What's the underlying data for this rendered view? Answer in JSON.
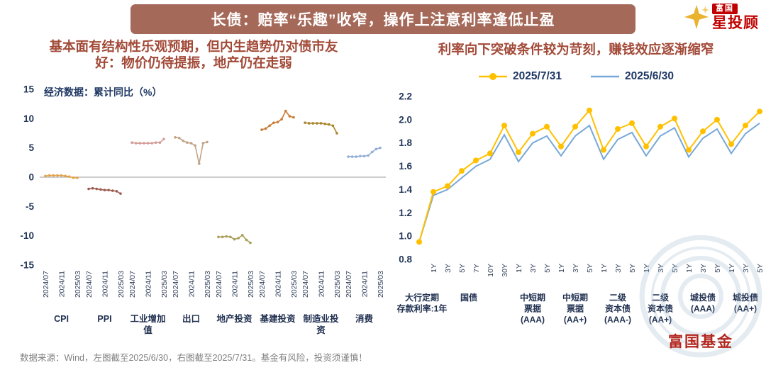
{
  "banner": {
    "title": "长债：赔率“乐趣”收窄，操作上注意利率逢低止盈"
  },
  "logo": {
    "brand": "富国",
    "product": "星投顾"
  },
  "footer": {
    "note": "数据来源：Wind，左图截至2025/6/30，右图截至2025/7/31。基金有风险，投资须谨慎！"
  },
  "watermark": {
    "text": "富国基金"
  },
  "colors": {
    "banner_bg": "#A5695A",
    "title_text": "#A24A38",
    "axis_text": "#24385B",
    "footer_text": "#808080",
    "brand_red": "#C00000",
    "current_series": "#FFC000",
    "previous_series": "#78A8D8"
  },
  "chart_data": [
    {
      "type": "line",
      "title_lines": [
        "基本面有结构性乐观预期，但内生趋势仍对债市友",
        "好：物价仍待提振，地产仍在走弱"
      ],
      "inner_label": "经济数据：累计同比（%）",
      "ylim": [
        -15,
        15
      ],
      "ytick_step": 5,
      "grid": false,
      "x_tick_labels": [
        "2024/07",
        "2024/11",
        "2025/03"
      ],
      "x_tick_indices": [
        0,
        4,
        8
      ],
      "groups": [
        {
          "label_lines": [
            "CPI"
          ],
          "color": "#E4A24C",
          "values": [
            0.2,
            0.3,
            0.3,
            0.3,
            0.3,
            0.2,
            0.1,
            -0.1,
            -0.1
          ]
        },
        {
          "label_lines": [
            "PPI"
          ],
          "color": "#9E5B50",
          "values": [
            -2.0,
            -1.9,
            -2.0,
            -2.1,
            -2.2,
            -2.2,
            -2.3,
            -2.4,
            -2.8
          ]
        },
        {
          "label_lines": [
            "工业增加",
            "值"
          ],
          "color": "#D49C96",
          "values": [
            5.9,
            5.8,
            5.8,
            5.8,
            5.8,
            5.8,
            5.9,
            5.9,
            6.5
          ]
        },
        {
          "label_lines": [
            "出口"
          ],
          "color": "#C2A385",
          "values": [
            6.8,
            6.7,
            6.2,
            5.9,
            5.8,
            5.4,
            2.3,
            5.8,
            6.0
          ]
        },
        {
          "label_lines": [
            "地产投资"
          ],
          "color": "#A8A05A",
          "values": [
            -10.2,
            -10.2,
            -10.1,
            -10.2,
            -10.6,
            -10.4,
            -9.9,
            -10.7,
            -11.2
          ]
        },
        {
          "label_lines": [
            "基建投资"
          ],
          "color": "#C97B34",
          "values": [
            8.1,
            8.3,
            8.8,
            9.3,
            9.4,
            9.9,
            11.3,
            10.4,
            10.2
          ]
        },
        {
          "label_lines": [
            "制造业投",
            "资"
          ],
          "color": "#A9862C",
          "values": [
            9.3,
            9.2,
            9.2,
            9.2,
            9.2,
            9.1,
            9.0,
            8.8,
            7.5
          ]
        },
        {
          "label_lines": [
            "消费"
          ],
          "color": "#92AFD7",
          "values": [
            3.5,
            3.5,
            3.5,
            3.6,
            3.6,
            3.7,
            4.3,
            4.8,
            5.0
          ]
        }
      ]
    },
    {
      "type": "line",
      "title": "利率向下突破条件较为苛刻，赚钱效应逐渐缩窄",
      "ylim": [
        0.8,
        2.2
      ],
      "ytick_step": 0.2,
      "grid": false,
      "legend_position": "top",
      "groups": [
        {
          "label_lines": [
            "大行定期",
            "存款利率:1年"
          ],
          "ticks": [
            ""
          ]
        },
        {
          "label_lines": [
            "国债"
          ],
          "ticks": [
            "1Y",
            "3Y",
            "5Y",
            "7Y",
            "10Y",
            "30Y"
          ]
        },
        {
          "label_lines": [
            "中短期",
            "票据",
            "(AAA)"
          ],
          "ticks": [
            "1Y",
            "3Y",
            "5Y"
          ]
        },
        {
          "label_lines": [
            "中短期",
            "票据",
            "(AA+)"
          ],
          "ticks": [
            "1Y",
            "3Y",
            "5Y"
          ]
        },
        {
          "label_lines": [
            "二级",
            "资本债",
            "(AAA-)"
          ],
          "ticks": [
            "1Y",
            "3Y",
            "5Y"
          ]
        },
        {
          "label_lines": [
            "二级",
            "资本债",
            "(AA+)"
          ],
          "ticks": [
            "1Y",
            "3Y",
            "5Y"
          ]
        },
        {
          "label_lines": [
            "城投债",
            "(AAA)"
          ],
          "ticks": [
            "1Y",
            "3Y",
            "5Y"
          ]
        },
        {
          "label_lines": [
            "城投债",
            "(AA+)"
          ],
          "ticks": [
            "1Y",
            "3Y",
            "5Y"
          ]
        }
      ],
      "series": [
        {
          "name": "2025/7/31",
          "color": "#FFC000",
          "marker": true,
          "values": [
            0.95,
            1.38,
            1.43,
            1.56,
            1.65,
            1.71,
            1.95,
            1.72,
            1.88,
            1.94,
            1.77,
            1.94,
            2.08,
            1.74,
            1.92,
            1.97,
            1.77,
            1.94,
            2.01,
            1.74,
            1.9,
            2.0,
            1.79,
            1.95,
            2.07
          ]
        },
        {
          "name": "2025/6/30",
          "color": "#78A8D8",
          "marker": false,
          "values": [
            0.95,
            1.35,
            1.4,
            1.5,
            1.6,
            1.66,
            1.87,
            1.64,
            1.8,
            1.86,
            1.69,
            1.86,
            1.95,
            1.66,
            1.83,
            1.89,
            1.69,
            1.86,
            1.93,
            1.68,
            1.84,
            1.92,
            1.71,
            1.88,
            1.97
          ]
        }
      ]
    }
  ]
}
